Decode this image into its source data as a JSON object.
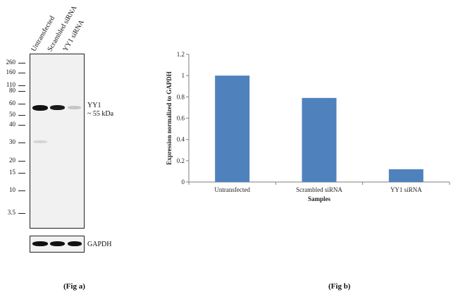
{
  "fig_a": {
    "lanes": [
      "Untransfected",
      "Scrambled siRNA",
      "YY1 siRNA"
    ],
    "markers": [
      "260",
      "160",
      "110",
      "80",
      "60",
      "50",
      "40",
      "30",
      "20",
      "15",
      "10",
      "3.5"
    ],
    "target_label": "YY1",
    "target_size": "~ 55 kDa",
    "loading_control": "GAPDH",
    "caption": "(Fig a)"
  },
  "fig_b": {
    "caption": "(Fig b)"
  },
  "chart_data": {
    "type": "bar",
    "categories": [
      "Untransfected",
      "Scrambled siRNA",
      "YY1 siRNA"
    ],
    "values": [
      1.0,
      0.79,
      0.12
    ],
    "xlabel": "Samples",
    "ylabel": "Expression  normalized to GAPDH",
    "ylim": [
      0,
      1.2
    ],
    "yticks": [
      0,
      0.2,
      0.4,
      0.6,
      0.8,
      1,
      1.2
    ],
    "bar_color": "#4f81bd",
    "grid": false
  }
}
